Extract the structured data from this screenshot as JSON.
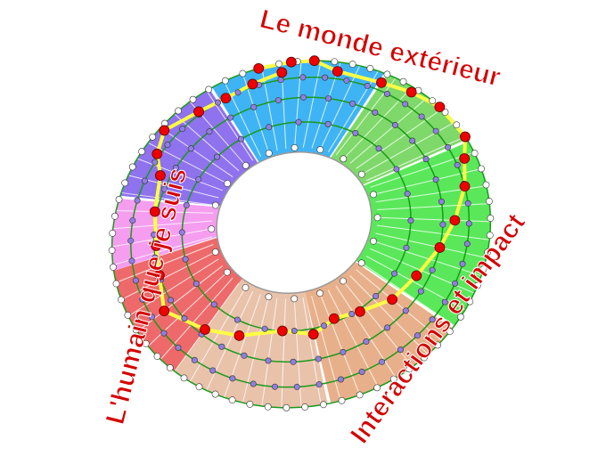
{
  "labels": {
    "top": "Le monde extérieur",
    "left": "L'humain que je suis",
    "bottom_right": "Interactions et impact"
  },
  "colors": {
    "sectors": [
      "#3fb4f5",
      "#7fd96a",
      "#5ae85a",
      "#e8b08a",
      "#e9c2aa",
      "#ee6a6a",
      "#f59ef0",
      "#8f72ee"
    ],
    "ring_line": "#1a9a1a",
    "path": "#ffff44",
    "red_node": "#ee0000",
    "inner_node": "#8f7fe0",
    "label": "#d40000"
  }
}
